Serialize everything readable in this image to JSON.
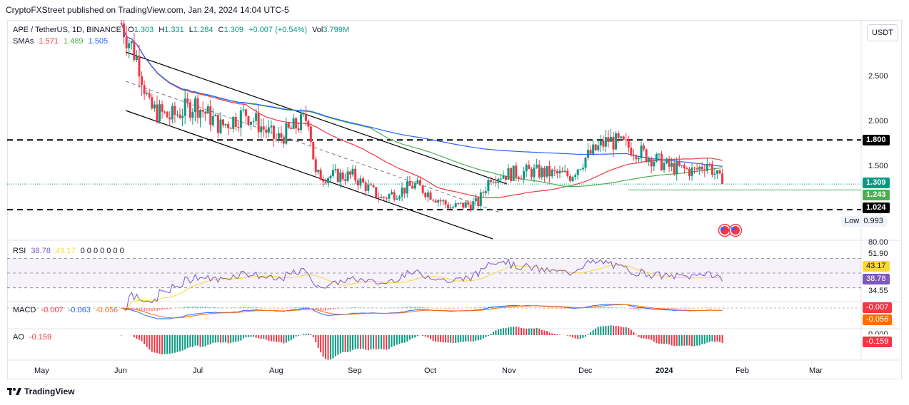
{
  "header": {
    "publisher": "CryptoFXStreet published on TradingView.com, Jan 24, 2024 14:04 UTC-5"
  },
  "symbol": {
    "title": "APE / TetherUS, 1D, BINANCE",
    "o_label": "O",
    "o": "1.303",
    "h_label": "H",
    "h": "1.331",
    "l_label": "L",
    "l": "1.284",
    "c_label": "C",
    "c": "1.309",
    "chg": "+0.007 (+0.54%)",
    "vol_label": "Vol",
    "vol": "3.799M"
  },
  "smas": {
    "label": "SMAs",
    "v1": "1.571",
    "v2": "1.489",
    "v3": "1.505"
  },
  "currency_button": "USDT",
  "price_axis": {
    "ticks": [
      "2.500",
      "2.000",
      "1.500"
    ]
  },
  "price_tags": {
    "level_high": "1.800",
    "last": "1.309",
    "support": "1.243",
    "level_low": "1.024",
    "low_label": "Low",
    "low_value": "0.993"
  },
  "rsi": {
    "label": "RSI",
    "v1": "38.78",
    "v2": "43.17",
    "rest": "0 0 0 0 0 0 0",
    "axis": [
      "80.00",
      "51.90",
      "34.55"
    ],
    "tag_ma": "43.17",
    "tag_val": "38.78"
  },
  "macd": {
    "label": "MACD",
    "v1": "-0.007",
    "v2": "-0.063",
    "v3": "-0.056",
    "tag1": "-0.007",
    "tag2": "-0.056"
  },
  "ao": {
    "label": "AO",
    "v1": "-0.159",
    "partial_axis": "0.000",
    "tag": "-0.159"
  },
  "time_axis": [
    "May",
    "Jun",
    "Jul",
    "Aug",
    "Sep",
    "Oct",
    "Nov",
    "Dec",
    "2024",
    "Feb",
    "Mar"
  ],
  "footer": {
    "brand": "TradingView"
  },
  "colors": {
    "up": "#089981",
    "down": "#f23645",
    "sma_red": "#f23645",
    "sma_green": "#4caf50",
    "sma_blue": "#2962ff",
    "rsi": "#7e57c2",
    "rsi_ma": "#fdd835"
  },
  "chart_data": {
    "type": "candlestick",
    "symbol": "APE / TetherUS",
    "interval": "1D",
    "x_range": [
      "May",
      "Mar"
    ],
    "ylim": [
      0.9,
      3.0
    ],
    "horizontal_levels": [
      1.8,
      1.243,
      1.024
    ],
    "close_path": [
      {
        "date": "2023-06-01",
        "close": 3.1
      },
      {
        "date": "2023-06-08",
        "close": 2.65
      },
      {
        "date": "2023-06-12",
        "close": 2.15
      },
      {
        "date": "2023-06-20",
        "close": 2.05
      },
      {
        "date": "2023-06-30",
        "close": 2.2
      },
      {
        "date": "2023-07-10",
        "close": 1.95
      },
      {
        "date": "2023-07-20",
        "close": 2.1
      },
      {
        "date": "2023-08-01",
        "close": 1.8
      },
      {
        "date": "2023-08-14",
        "close": 2.05
      },
      {
        "date": "2023-08-17",
        "close": 1.4
      },
      {
        "date": "2023-09-01",
        "close": 1.4
      },
      {
        "date": "2023-09-12",
        "close": 1.15
      },
      {
        "date": "2023-09-25",
        "close": 1.3
      },
      {
        "date": "2023-10-09",
        "close": 1.05
      },
      {
        "date": "2023-10-20",
        "close": 1.1
      },
      {
        "date": "2023-10-25",
        "close": 1.4
      },
      {
        "date": "2023-11-10",
        "close": 1.45
      },
      {
        "date": "2023-11-25",
        "close": 1.4
      },
      {
        "date": "2023-12-01",
        "close": 1.6
      },
      {
        "date": "2023-12-10",
        "close": 1.8
      },
      {
        "date": "2023-12-20",
        "close": 1.7
      },
      {
        "date": "2024-01-03",
        "close": 1.5
      },
      {
        "date": "2024-01-13",
        "close": 1.45
      },
      {
        "date": "2024-01-18",
        "close": 1.55
      },
      {
        "date": "2024-01-24",
        "close": 1.309
      }
    ],
    "sma_values": {
      "red": 1.571,
      "green": 1.489,
      "blue": 1.505
    },
    "rsi_value": 38.78,
    "rsi_ma_value": 43.17,
    "macd_values": [
      -0.007,
      -0.063,
      -0.056
    ],
    "ao_value": -0.159
  }
}
